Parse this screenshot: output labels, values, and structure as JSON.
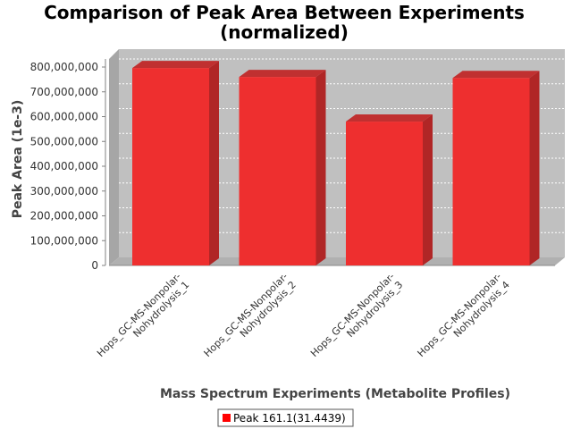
{
  "chart_data": {
    "type": "bar",
    "title_line1": "Comparison of Peak Area Between Experiments",
    "title_line2": "(normalized)",
    "xlabel": "Mass Spectrum Experiments (Metabolite Profiles)",
    "ylabel": "Peak Area (1e-3)",
    "categories": [
      [
        "Hops_GC-MS-Nonpolar-",
        "Nohydrolysis_1"
      ],
      [
        "Hops_GC-MS-Nonpolar-",
        "Nohydrolysis_2"
      ],
      [
        "Hops_GC-MS-Nonpolar-",
        "Nohydrolysis_3"
      ],
      [
        "Hops_GC-MS-Nonpolar-",
        "Nohydrolysis_4"
      ]
    ],
    "series": [
      {
        "name": "Peak 161.1(31.4439)",
        "color": "#ff0000",
        "values": [
          796000000,
          760000000,
          580000000,
          756000000
        ]
      }
    ],
    "ylim": [
      0,
      800000000
    ],
    "yticks": [
      "0",
      "100,000,000",
      "200,000,000",
      "300,000,000",
      "400,000,000",
      "500,000,000",
      "600,000,000",
      "700,000,000",
      "800,000,000"
    ],
    "grid": true,
    "legend_position": "bottom"
  }
}
